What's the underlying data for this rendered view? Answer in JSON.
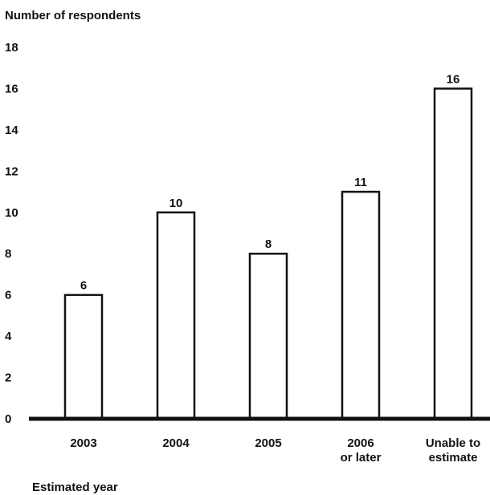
{
  "chart_data": {
    "type": "bar",
    "ylabel": "Number of respondents",
    "xlabel": "Estimated year",
    "categories": [
      [
        "2003"
      ],
      [
        "2004"
      ],
      [
        "2005"
      ],
      [
        "2006",
        "or later"
      ],
      [
        "Unable to",
        "estimate"
      ]
    ],
    "values": [
      6,
      10,
      8,
      11,
      16
    ],
    "data_labels": [
      "6",
      "10",
      "8",
      "11",
      "16"
    ],
    "ylim": [
      0,
      18
    ],
    "yticks": [
      "0",
      "2",
      "4",
      "6",
      "8",
      "10",
      "12",
      "14",
      "16",
      "18"
    ],
    "grid": false,
    "legend": "none",
    "colors": {
      "bar_fill": "#ffffff",
      "bar_stroke": "#111111",
      "axis": "#111111",
      "text": "#111111"
    }
  }
}
